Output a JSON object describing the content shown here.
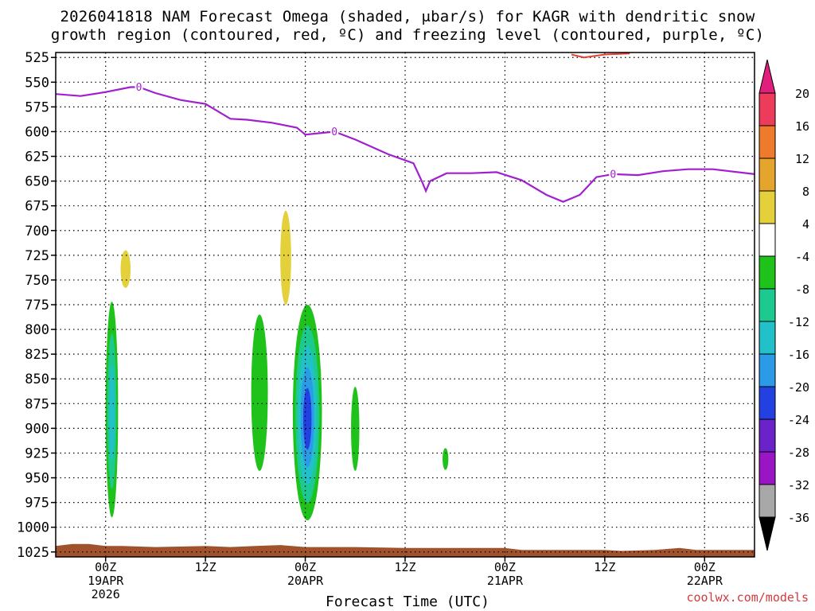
{
  "header": {
    "title_line_1": "2026041818 NAM Forecast Omega (shaded, μbar/s) for KAGR with dendritic snow",
    "title_line_2": "growth region (contoured, red, ºC) and freezing level (contoured, purple, ºC)"
  },
  "footer": {
    "site": "coolwx.com/models"
  },
  "chart_data": {
    "type": "time-height cross section",
    "title": "2026041818 NAM Forecast Omega (shaded, μbar/s) for KAGR with dendritic snow growth region (contoured, red, ºC) and freezing level (contoured, purple, ºC)",
    "xlabel": "Forecast Time (UTC)",
    "ylabel": "",
    "x_unit": "hours since 2026-04-18 18Z",
    "xlim": [
      0,
      84
    ],
    "ylim": [
      1030,
      520
    ],
    "grid": true,
    "y_ticks": [
      525,
      550,
      575,
      600,
      625,
      650,
      675,
      700,
      725,
      750,
      775,
      800,
      825,
      850,
      875,
      900,
      925,
      950,
      975,
      1000,
      1025
    ],
    "x_ticks": [
      {
        "x": 6,
        "label": "00Z",
        "sub1": "19APR",
        "sub2": "2026"
      },
      {
        "x": 18,
        "label": "12Z",
        "sub1": "",
        "sub2": ""
      },
      {
        "x": 30,
        "label": "00Z",
        "sub1": "20APR",
        "sub2": ""
      },
      {
        "x": 42,
        "label": "12Z",
        "sub1": "",
        "sub2": ""
      },
      {
        "x": 54,
        "label": "00Z",
        "sub1": "21APR",
        "sub2": ""
      },
      {
        "x": 66,
        "label": "12Z",
        "sub1": "",
        "sub2": ""
      },
      {
        "x": 78,
        "label": "00Z",
        "sub1": "22APR",
        "sub2": ""
      }
    ],
    "colorbar": {
      "unit": "μbar/s",
      "levels": [
        20,
        16,
        12,
        8,
        4,
        -4,
        -8,
        -12,
        -16,
        -20,
        -24,
        -28,
        -32,
        -36
      ],
      "colors": [
        "#ec3b5b",
        "#ee7a2b",
        "#e5a52d",
        "#e3d03a",
        "#ffffff",
        "#1fc21a",
        "#1cc98f",
        "#22c1c9",
        "#2b9be8",
        "#2341e0",
        "#6a22c9",
        "#9a15c3",
        "#a8a8a8"
      ],
      "top_arrow_color": "#e01e7c",
      "bottom_arrow_color": "#000000"
    },
    "freezing_level": {
      "color": "#a020d0",
      "contour_label": "0",
      "label_x": [
        10,
        33.5,
        67
      ],
      "points": [
        [
          0,
          562
        ],
        [
          3,
          564
        ],
        [
          6,
          560
        ],
        [
          9,
          555
        ],
        [
          10,
          555
        ],
        [
          12,
          561
        ],
        [
          15,
          568
        ],
        [
          18,
          572
        ],
        [
          21,
          587
        ],
        [
          23,
          588
        ],
        [
          26,
          591
        ],
        [
          29,
          596
        ],
        [
          30,
          603
        ],
        [
          33.5,
          600
        ],
        [
          36,
          608
        ],
        [
          40,
          623
        ],
        [
          43,
          632
        ],
        [
          44,
          650
        ],
        [
          44.5,
          660
        ],
        [
          45,
          650
        ],
        [
          47,
          642
        ],
        [
          50,
          642
        ],
        [
          53,
          641
        ],
        [
          56,
          649
        ],
        [
          59,
          664
        ],
        [
          61,
          671
        ],
        [
          63,
          664
        ],
        [
          65,
          646
        ],
        [
          67,
          643
        ],
        [
          70,
          644
        ],
        [
          73,
          640
        ],
        [
          76,
          638
        ],
        [
          79,
          638
        ],
        [
          84,
          643
        ]
      ]
    },
    "dendritic_zone": {
      "color": "#e84030",
      "points": [
        [
          62,
          522
        ],
        [
          63.5,
          525
        ],
        [
          66,
          522
        ],
        [
          69,
          521
        ]
      ]
    },
    "omega_cells": [
      {
        "x": [
          6,
          7.5
        ],
        "top": 772,
        "bottom": 990,
        "levels": [
          -4,
          -8,
          -12
        ]
      },
      {
        "x": [
          23.5,
          25.5
        ],
        "top": 785,
        "bottom": 943,
        "levels": [
          -4
        ]
      },
      {
        "x": [
          28.5,
          32
        ],
        "top": 775,
        "bottom": 993,
        "levels": [
          -4,
          -8,
          -12,
          -16,
          -20
        ]
      },
      {
        "x": [
          35.5,
          36.5
        ],
        "top": 858,
        "bottom": 943,
        "levels": [
          -4
        ]
      },
      {
        "x": [
          46.5,
          47.2
        ],
        "top": 920,
        "bottom": 942,
        "levels": [
          -4
        ]
      },
      {
        "x": [
          7.8,
          9
        ],
        "top": 720,
        "bottom": 758,
        "levels": [
          4
        ]
      },
      {
        "x": [
          27,
          28.3
        ],
        "top": 680,
        "bottom": 775,
        "levels": [
          4
        ]
      }
    ],
    "terrain": {
      "color": "#a0522d",
      "surface_points": [
        [
          0,
          1019
        ],
        [
          2,
          1017
        ],
        [
          4,
          1017
        ],
        [
          6,
          1019
        ],
        [
          8,
          1019
        ],
        [
          12,
          1020
        ],
        [
          18,
          1019
        ],
        [
          21,
          1020
        ],
        [
          24,
          1019
        ],
        [
          27,
          1018
        ],
        [
          30,
          1020
        ],
        [
          33,
          1020
        ],
        [
          36,
          1020
        ],
        [
          42,
          1021
        ],
        [
          54,
          1021
        ],
        [
          56,
          1023
        ],
        [
          66,
          1023
        ],
        [
          68,
          1024
        ],
        [
          72,
          1023
        ],
        [
          75,
          1021
        ],
        [
          77,
          1023
        ],
        [
          84,
          1023
        ]
      ]
    }
  }
}
